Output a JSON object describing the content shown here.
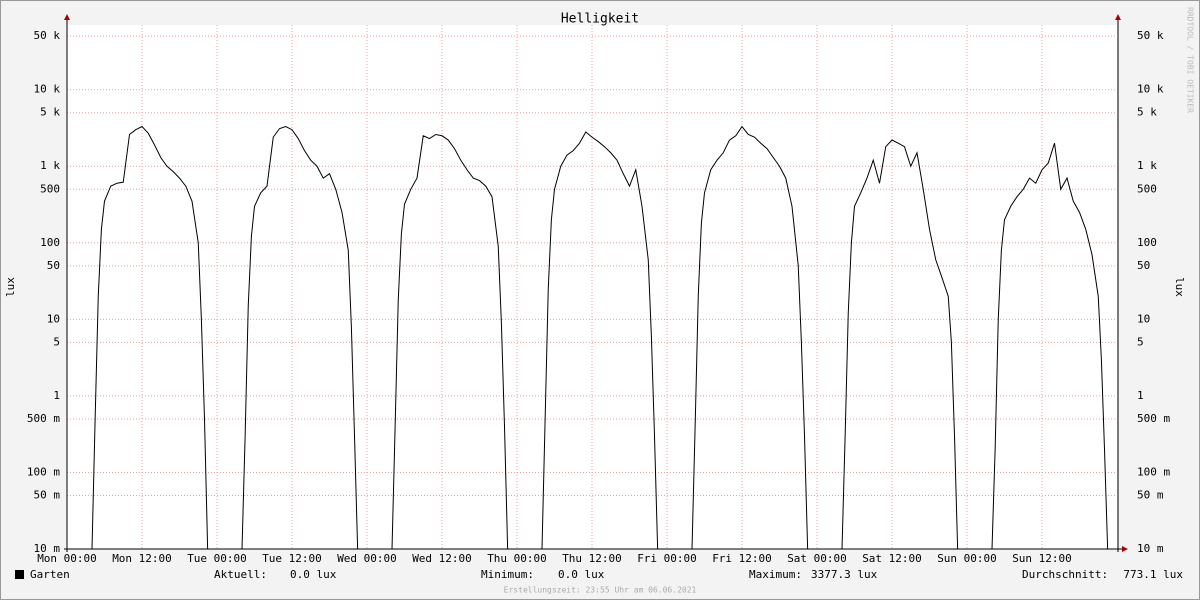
{
  "chart_data": {
    "type": "line",
    "title": "Helligkeit",
    "y_label": "lux",
    "watermark": "RRDTOOL / TOBI OETIKER",
    "log_scale": true,
    "grid": true,
    "xlim": [
      0,
      168
    ],
    "xticks": [
      {
        "value": 0,
        "label": "Mon 00:00"
      },
      {
        "value": 12,
        "label": "Mon 12:00"
      },
      {
        "value": 24,
        "label": "Tue 00:00"
      },
      {
        "value": 36,
        "label": "Tue 12:00"
      },
      {
        "value": 48,
        "label": "Wed 00:00"
      },
      {
        "value": 60,
        "label": "Wed 12:00"
      },
      {
        "value": 72,
        "label": "Thu 00:00"
      },
      {
        "value": 84,
        "label": "Thu 12:00"
      },
      {
        "value": 96,
        "label": "Fri 00:00"
      },
      {
        "value": 108,
        "label": "Fri 12:00"
      },
      {
        "value": 120,
        "label": "Sat 00:00"
      },
      {
        "value": 132,
        "label": "Sat 12:00"
      },
      {
        "value": 144,
        "label": "Sun 00:00"
      },
      {
        "value": 156,
        "label": "Sun 12:00"
      }
    ],
    "ylim": [
      0.01,
      70000
    ],
    "yticks": [
      {
        "value": 0.01,
        "label": "10 m"
      },
      {
        "value": 0.05,
        "label": "50 m"
      },
      {
        "value": 0.1,
        "label": "100 m"
      },
      {
        "value": 0.5,
        "label": "500 m"
      },
      1,
      5,
      10,
      50,
      100,
      500,
      {
        "value": 1000,
        "label": "1 k"
      },
      {
        "value": 5000,
        "label": "5 k"
      },
      {
        "value": 10000,
        "label": "10 k"
      },
      {
        "value": 50000,
        "label": "50 k"
      }
    ],
    "x": [
      0,
      4,
      4.5,
      5,
      5.5,
      6,
      7,
      8,
      9,
      10,
      11,
      12,
      13,
      14,
      15,
      16,
      17,
      18,
      19,
      20,
      21,
      21.5,
      22,
      22.5,
      24,
      28,
      28.5,
      29,
      29.5,
      30,
      31,
      32,
      33,
      34,
      35,
      36,
      37,
      38,
      39,
      40,
      41,
      42,
      43,
      44,
      45,
      45.5,
      46,
      46.5,
      48,
      52,
      52.5,
      53,
      53.5,
      54,
      55,
      56,
      57,
      58,
      59,
      60,
      61,
      62,
      63,
      64,
      65,
      66,
      67,
      68,
      69,
      69.5,
      70,
      70.5,
      72,
      76,
      76.5,
      77,
      77.5,
      78,
      79,
      80,
      81,
      82,
      83,
      84,
      85,
      86,
      87,
      88,
      89,
      90,
      91,
      92,
      93,
      93.5,
      94,
      94.5,
      96,
      100,
      100.5,
      101,
      101.5,
      102,
      103,
      104,
      105,
      106,
      107,
      108,
      109,
      110,
      111,
      112,
      113,
      114,
      115,
      116,
      117,
      117.5,
      118,
      118.5,
      120,
      124,
      124.5,
      125,
      125.5,
      126,
      127,
      128,
      129,
      130,
      131,
      132,
      133,
      134,
      135,
      136,
      137,
      138,
      139,
      140,
      141,
      141.5,
      142,
      142.5,
      144,
      148,
      148.5,
      149,
      149.5,
      150,
      151,
      152,
      153,
      154,
      155,
      156,
      157,
      158,
      159,
      160,
      161,
      162,
      163,
      164,
      165,
      165.5,
      166,
      166.5
    ],
    "series": [
      {
        "name": "Garten",
        "color": "#000000",
        "values": [
          null,
          0.01,
          0.5,
          20,
          150,
          350,
          550,
          600,
          620,
          2600,
          3000,
          3300,
          2700,
          1900,
          1300,
          1000,
          850,
          700,
          550,
          350,
          100,
          10,
          0.5,
          0.01,
          null,
          0.01,
          0.3,
          15,
          120,
          300,
          450,
          550,
          2400,
          3100,
          3300,
          3000,
          2300,
          1600,
          1200,
          1000,
          700,
          800,
          500,
          250,
          80,
          8,
          0.3,
          0.01,
          null,
          0.01,
          0.4,
          18,
          130,
          320,
          500,
          700,
          2500,
          2300,
          2600,
          2500,
          2200,
          1700,
          1200,
          900,
          700,
          650,
          550,
          400,
          90,
          9,
          0.4,
          0.01,
          null,
          0.01,
          0.5,
          25,
          200,
          500,
          1000,
          1400,
          1600,
          2000,
          2800,
          2400,
          2100,
          1800,
          1500,
          1200,
          800,
          550,
          900,
          300,
          60,
          6,
          0.3,
          0.01,
          null,
          0.01,
          0.4,
          20,
          180,
          450,
          900,
          1200,
          1500,
          2200,
          2500,
          3300,
          2600,
          2400,
          2000,
          1700,
          1300,
          1000,
          700,
          300,
          50,
          5,
          0.3,
          0.01,
          null,
          0.01,
          0.3,
          12,
          100,
          300,
          450,
          700,
          1200,
          600,
          1800,
          2200,
          2000,
          1800,
          1000,
          1500,
          500,
          150,
          60,
          35,
          20,
          5,
          0.3,
          0.01,
          null,
          0.01,
          0.2,
          10,
          80,
          200,
          300,
          400,
          500,
          700,
          600,
          900,
          1100,
          2000,
          500,
          700,
          350,
          250,
          150,
          70,
          20,
          3,
          0.2,
          0.01
        ]
      }
    ],
    "stats": [
      {
        "label": "Aktuell:",
        "value": "0.0 lux"
      },
      {
        "label": "Minimum:",
        "value": "0.0 lux"
      },
      {
        "label": "Maximum:",
        "value": "3377.3 lux"
      },
      {
        "label": "Durchschnitt:",
        "value": "773.1 lux"
      }
    ],
    "footer": "Erstellungszeit: 23:55 Uhr am 06.06.2021"
  }
}
